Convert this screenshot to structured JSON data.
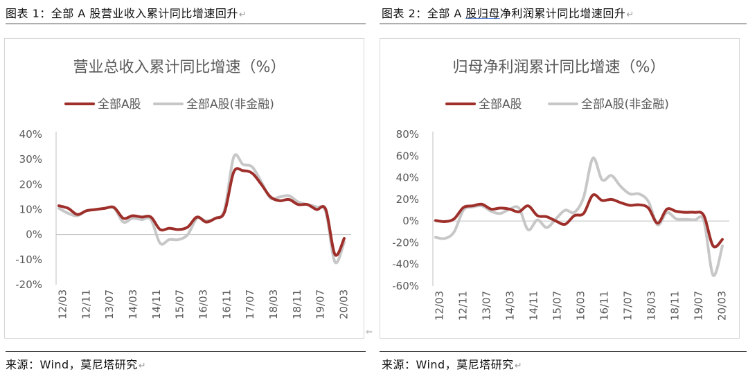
{
  "figures": [
    {
      "caption": "图表 1：全部 A 股营业收入累计同比增速回升",
      "source": "来源：Wind，莫尼塔研究"
    },
    {
      "caption_prefix": "图表 2：全部 A ",
      "caption_underlined": "股归母",
      "caption_suffix": "净利润累计同比增速回升",
      "source": "来源：Wind，莫尼塔研究"
    }
  ],
  "colors": {
    "series1": "#9e2f2a",
    "series2": "#c7c7c7",
    "axis": "#bfbfbf",
    "text": "#595959"
  },
  "chart_data": [
    {
      "type": "line",
      "title": "营业总收入累计同比增速（%）",
      "ylim": [
        -20,
        40
      ],
      "yticks": [
        "40%",
        "30%",
        "20%",
        "10%",
        "0%",
        "-10%",
        "-20%"
      ],
      "ytick_values": [
        40,
        30,
        20,
        10,
        0,
        -10,
        -20
      ],
      "xticks": [
        "12/03",
        "12/11",
        "13/07",
        "14/03",
        "14/11",
        "15/07",
        "16/03",
        "16/11",
        "17/07",
        "18/03",
        "18/11",
        "19/07",
        "20/03"
      ],
      "legend_position": "top",
      "series": [
        {
          "name": "全部A股",
          "values": [
            11.5,
            10.5,
            8.0,
            9.5,
            10.0,
            10.5,
            10.8,
            6.5,
            7.5,
            7.0,
            7.0,
            2.0,
            2.5,
            2.0,
            3.0,
            7.0,
            5.0,
            6.5,
            9.0,
            25.0,
            25.5,
            24.5,
            20.0,
            15.0,
            13.5,
            14.0,
            12.0,
            12.0,
            10.0,
            10.0,
            -8.0,
            -1.5
          ]
        },
        {
          "name": "全部A股(非金融)",
          "values": [
            10.5,
            8.5,
            7.5,
            9.5,
            10.0,
            10.5,
            10.5,
            5.0,
            6.5,
            6.0,
            6.0,
            -3.5,
            -2.0,
            -2.0,
            0.0,
            6.5,
            5.5,
            6.5,
            10.0,
            31.0,
            28.0,
            27.0,
            21.0,
            14.5,
            15.0,
            15.5,
            13.0,
            12.0,
            11.0,
            9.0,
            -11.0,
            -3.0
          ]
        }
      ]
    },
    {
      "type": "line",
      "title": "归母净利润累计同比增速（%）",
      "ylim": [
        -60,
        80
      ],
      "yticks": [
        "80%",
        "60%",
        "40%",
        "20%",
        "0%",
        "-20%",
        "-40%",
        "-60%"
      ],
      "ytick_values": [
        80,
        60,
        40,
        20,
        0,
        -20,
        -40,
        -60
      ],
      "xticks": [
        "12/03",
        "12/11",
        "13/07",
        "14/03",
        "14/11",
        "15/07",
        "16/03",
        "16/11",
        "17/07",
        "18/03",
        "18/11",
        "19/07",
        "20/03"
      ],
      "legend_position": "top",
      "series": [
        {
          "name": "全部A股",
          "values": [
            0.5,
            -0.5,
            2.0,
            12.5,
            14.0,
            15.5,
            11.0,
            12.0,
            11.0,
            8.5,
            14.0,
            5.0,
            4.0,
            0.0,
            -3.0,
            5.0,
            7.0,
            24.0,
            19.0,
            20.0,
            17.0,
            14.5,
            15.0,
            12.0,
            -2.0,
            11.0,
            9.0,
            8.0,
            8.0,
            5.0,
            -23.0,
            -17.0
          ]
        },
        {
          "name": "全部A股(非金融)",
          "values": [
            -15.0,
            -16.0,
            -10.0,
            10.0,
            13.0,
            14.0,
            9.0,
            7.0,
            11.0,
            12.0,
            -8.0,
            1.0,
            -6.0,
            2.0,
            10.0,
            8.0,
            22.0,
            58.0,
            38.0,
            42.0,
            32.0,
            25.0,
            25.0,
            18.0,
            -3.5,
            8.0,
            2.0,
            1.5,
            1.0,
            0.0,
            -50.0,
            -23.0
          ]
        }
      ]
    }
  ]
}
